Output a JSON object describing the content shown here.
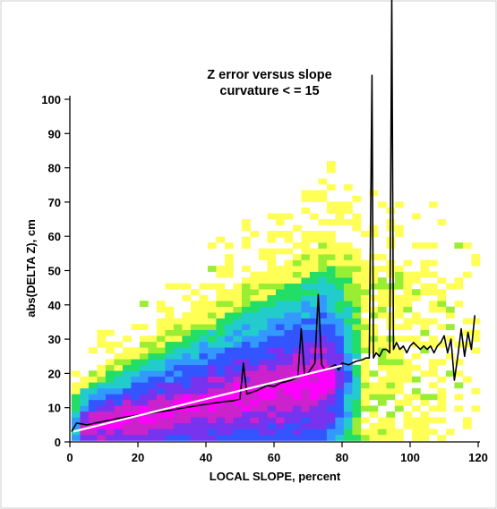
{
  "chart_data": {
    "type": "heatmap",
    "title_lines": [
      "Z error versus slope",
      "curvature < = 15"
    ],
    "xlabel": "LOCAL SLOPE, percent",
    "ylabel": "abs(DELTA Z), cm",
    "xlim": [
      0,
      120
    ],
    "ylim": [
      0,
      100
    ],
    "xticks": [
      0,
      20,
      40,
      60,
      80,
      100,
      120
    ],
    "yticks": [
      0,
      10,
      20,
      30,
      40,
      50,
      60,
      70,
      80,
      90,
      100
    ],
    "color_scale": [
      "#ffff55",
      "#99ee33",
      "#22dd66",
      "#22cccc",
      "#3399ff",
      "#3355ff",
      "#7733ee",
      "#cc22cc",
      "#ff00ff"
    ],
    "series": [
      {
        "name": "mean",
        "color": "#000000",
        "x": [
          0.5,
          2,
          5,
          10,
          15,
          20,
          25,
          30,
          35,
          40,
          45,
          48,
          50,
          51,
          52,
          55,
          58,
          60,
          62,
          65,
          67,
          68,
          69,
          70,
          72,
          73,
          74,
          75,
          77,
          78,
          79,
          80,
          82,
          84,
          86,
          87,
          88,
          88.8,
          89.2,
          90,
          91,
          92,
          93,
          94,
          94.6,
          95.1,
          96,
          97,
          98,
          99,
          100,
          101,
          102,
          103,
          104,
          105,
          106,
          107,
          108,
          109,
          110,
          111,
          112,
          113,
          114,
          115,
          116,
          117,
          118,
          119
        ],
        "y": [
          3,
          5.5,
          5,
          6,
          7,
          7.8,
          8.6,
          9.3,
          10.2,
          11,
          11.7,
          12,
          12.5,
          23,
          14,
          15,
          16.5,
          16.2,
          17.2,
          18,
          19,
          33,
          19.5,
          20,
          23,
          43,
          22.5,
          21,
          22,
          22.5,
          21,
          23,
          22.5,
          23.5,
          24,
          24.5,
          24.5,
          107,
          24.5,
          26,
          25,
          27,
          27,
          26,
          175,
          27,
          29,
          27,
          28,
          26,
          28,
          29,
          28,
          27,
          28,
          27,
          28,
          26,
          28,
          29,
          31,
          26,
          30,
          18,
          25,
          33,
          25,
          32,
          27,
          37
        ]
      },
      {
        "name": "trend",
        "color": "#ffffff",
        "x": [
          1,
          80
        ],
        "y": [
          3,
          22.3
        ]
      }
    ],
    "grid": false
  }
}
